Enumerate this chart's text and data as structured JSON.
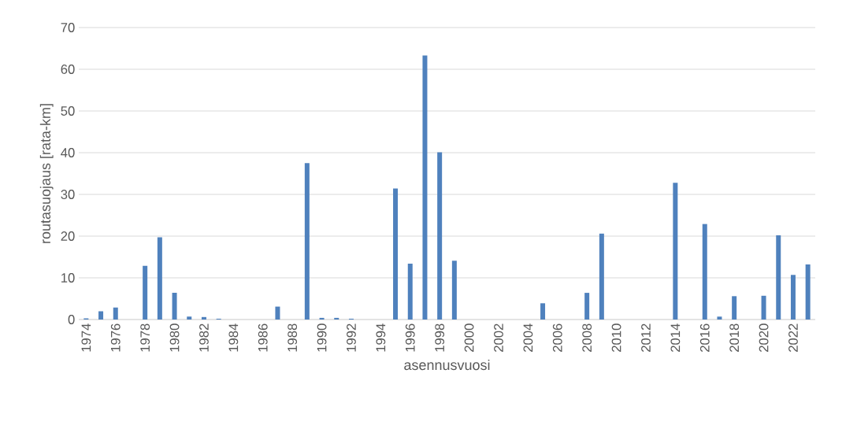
{
  "chart_data": {
    "type": "bar",
    "xlabel": "asennusvuosi",
    "ylabel": "routasuojaus [rata-km]",
    "categories": [
      "1974",
      null,
      "1976",
      null,
      "1978",
      null,
      "1980",
      null,
      "1982",
      null,
      "1984",
      null,
      "1986",
      null,
      "1988",
      null,
      "1990",
      null,
      "1992",
      null,
      "1994",
      null,
      "1996",
      null,
      "1998",
      null,
      "2000",
      null,
      "2002",
      null,
      "2004",
      null,
      "2006",
      null,
      "2008",
      null,
      "2010",
      null,
      "2012",
      null,
      "2014",
      null,
      "2016",
      null,
      "2018",
      null,
      "2020",
      null,
      "2022",
      null
    ],
    "values": [
      0.3,
      2.0,
      2.9,
      0,
      12.9,
      19.7,
      6.4,
      0.7,
      0.6,
      0.2,
      0,
      0,
      0,
      3.1,
      0,
      37.5,
      0.4,
      0.4,
      0.2,
      0,
      0,
      31.4,
      13.4,
      63.3,
      40.1,
      14.1,
      0,
      0,
      0,
      0,
      0,
      3.9,
      0,
      0,
      6.4,
      20.6,
      0,
      0,
      0,
      0,
      32.8,
      0,
      22.9,
      0.7,
      5.6,
      0,
      5.7,
      20.2,
      10.7,
      13.2
    ],
    "color": "#4f81bd",
    "ylim": [
      0,
      70
    ],
    "yticks": [
      0,
      10,
      20,
      30,
      40,
      50,
      60,
      70
    ],
    "grid": "y"
  }
}
